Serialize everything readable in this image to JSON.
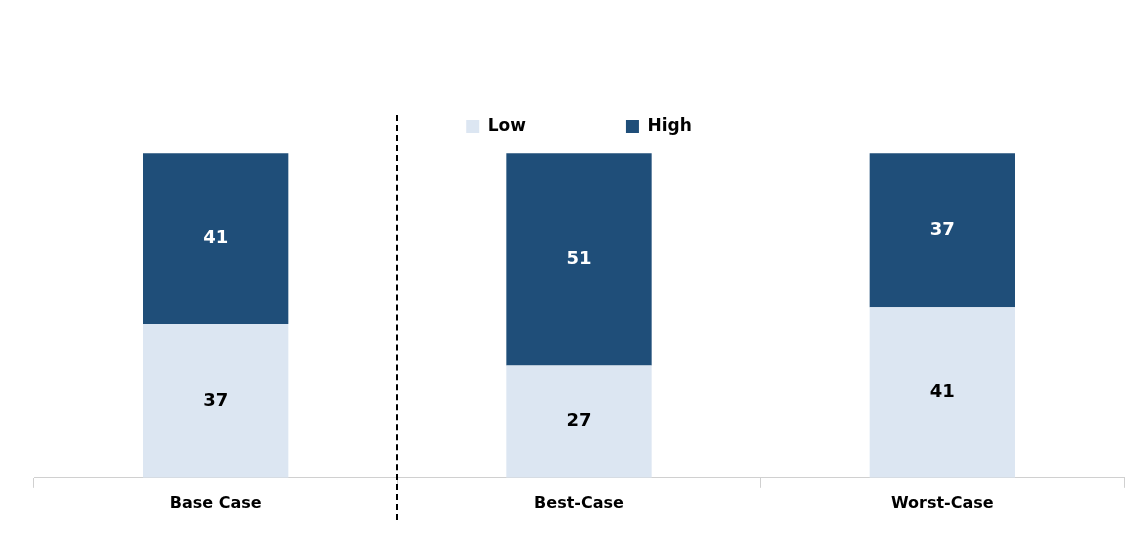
{
  "chart_data": {
    "type": "bar",
    "stacked": true,
    "categories": [
      "Base Case",
      "Best-Case",
      "Worst-Case"
    ],
    "series": [
      {
        "name": "Low",
        "color": "#dce6f2",
        "values": [
          37,
          27,
          41
        ]
      },
      {
        "name": "High",
        "color": "#1f4e79",
        "values": [
          41,
          51,
          37
        ]
      }
    ],
    "data_labels": true,
    "legend": "top",
    "grid": false,
    "tick_labels": "x"
  }
}
